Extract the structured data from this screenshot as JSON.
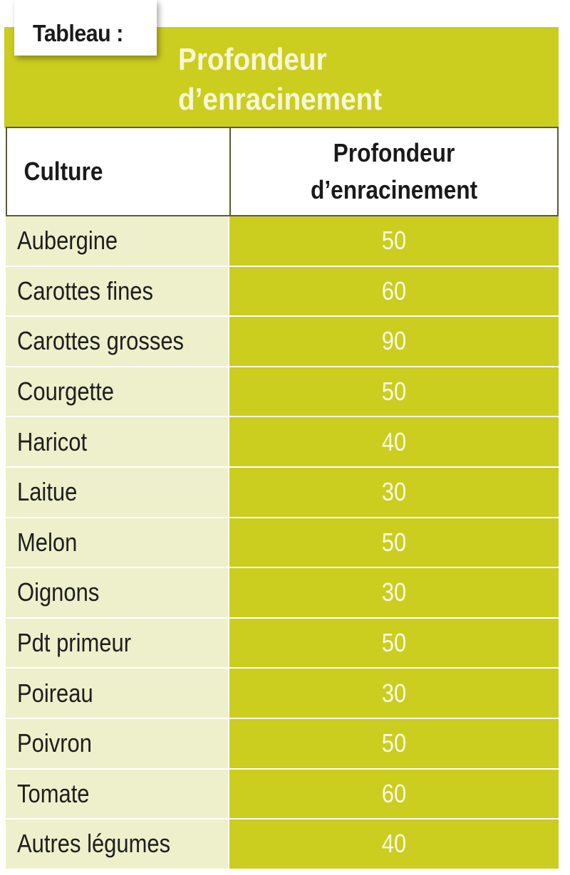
{
  "tag_label": "Tableau :",
  "title_line1": "Profondeur",
  "title_line2": "d’enracinement",
  "chart_data": {
    "type": "table",
    "columns": [
      "Culture",
      "Profondeur d’enracinement"
    ],
    "column_header_1": "Culture",
    "column_header_2_line1": "Profondeur",
    "column_header_2_line2": "d’enracinement",
    "rows": [
      {
        "culture": "Aubergine",
        "profondeur": "50"
      },
      {
        "culture": "Carottes fines",
        "profondeur": "60"
      },
      {
        "culture": "Carottes grosses",
        "profondeur": "90"
      },
      {
        "culture": "Courgette",
        "profondeur": "50"
      },
      {
        "culture": "Haricot",
        "profondeur": "40"
      },
      {
        "culture": "Laitue",
        "profondeur": "30"
      },
      {
        "culture": "Melon",
        "profondeur": "50"
      },
      {
        "culture": "Oignons",
        "profondeur": "30"
      },
      {
        "culture": "Pdt primeur",
        "profondeur": "50"
      },
      {
        "culture": "Poireau",
        "profondeur": "30"
      },
      {
        "culture": "Poivron",
        "profondeur": "50"
      },
      {
        "culture": "Tomate",
        "profondeur": "60"
      },
      {
        "culture": "Autres légumes",
        "profondeur": "40"
      }
    ]
  },
  "colors": {
    "accent": "#cbcd1f",
    "light_row": "#edf0ca",
    "value_text": "#f9f9e6"
  }
}
